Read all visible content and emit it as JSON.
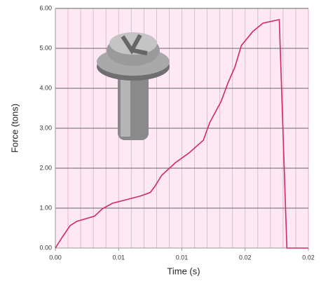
{
  "chart_data": {
    "type": "line",
    "xlabel": "Time (s)",
    "ylabel": "Force (tons)",
    "x": [
      0,
      0.0005,
      0.00116,
      0.0017,
      0.0031,
      0.0037,
      0.0045,
      0.0056,
      0.0067,
      0.0075,
      0.0079,
      0.0084,
      0.0095,
      0.0106,
      0.0117,
      0.0122,
      0.0131,
      0.0136,
      0.0142,
      0.0147,
      0.0156,
      0.0164,
      0.0177,
      0.0183,
      0.02
    ],
    "series": [
      {
        "color": "#d22a5f",
        "values": [
          0,
          0.25,
          0.56,
          0.67,
          0.8,
          0.98,
          1.12,
          1.21,
          1.3,
          1.39,
          1.56,
          1.82,
          2.14,
          2.39,
          2.7,
          3.14,
          3.67,
          4.1,
          4.54,
          5.07,
          5.42,
          5.63,
          5.72,
          0,
          0
        ]
      }
    ],
    "xlim": [
      0,
      0.02
    ],
    "xticks": [
      {
        "value": 0,
        "label": "0.00"
      },
      {
        "value": 0.005,
        "label": "0.01"
      },
      {
        "value": 0.01,
        "label": "0.01"
      },
      {
        "value": 0.015,
        "label": "0.02"
      },
      {
        "value": 0.02,
        "label": "0.02"
      }
    ],
    "ylim": [
      0,
      6
    ],
    "yticks": [
      {
        "value": 0,
        "label": "0.00"
      },
      {
        "value": 1,
        "label": "1.00"
      },
      {
        "value": 2,
        "label": "2.00"
      },
      {
        "value": 3,
        "label": "3.00"
      },
      {
        "value": 4,
        "label": "4.00"
      },
      {
        "value": 5,
        "label": "5.00"
      },
      {
        "value": 6,
        "label": "6.00"
      }
    ],
    "grid": true
  }
}
